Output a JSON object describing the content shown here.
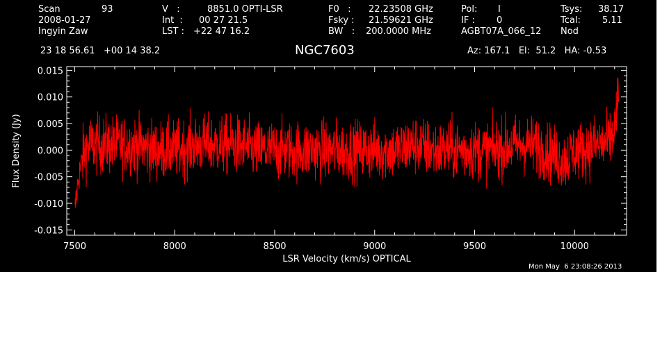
{
  "header": {
    "col1": [
      "Scan",
      "2008-01-27",
      "Ingyin Zaw"
    ],
    "scan_number": "93",
    "col2_labels": [
      "V   :",
      "Int  :",
      "LST :"
    ],
    "col2_values": [
      "8851.0 OPTI-LSR",
      "00 27 21.5",
      "+22 47 16.2"
    ],
    "col3_labels": [
      "F0   :",
      "Fsky :",
      "BW   :"
    ],
    "col3_values": [
      "22.23508 GHz",
      "21.59621 GHz",
      "200.0000 MHz"
    ],
    "col4_labels": [
      "Pol:",
      "IF :",
      "AGBT07A_066_12"
    ],
    "col4_values": [
      "I",
      "0",
      ""
    ],
    "col5_labels": [
      "Tsys:",
      "Tcal:",
      "Nod"
    ],
    "col5_values": [
      "38.17",
      "5.11",
      ""
    ],
    "coords": "23 18 56.61   +00 14 38.2",
    "object": "NGC7603",
    "azelha": "Az: 167.1   El:  51.2   HA: -0.53",
    "timestamp": "Mon May  6 23:08:26 2013"
  },
  "colors": {
    "background": "#000000",
    "trace": "#ff0000",
    "axes": "#ffffff"
  },
  "chart_data": {
    "type": "line",
    "xlabel": "LSR Velocity (km/s) OPTICAL",
    "ylabel": "Flux Density (Jy)",
    "xlim": [
      7460,
      10260
    ],
    "ylim": [
      -0.016,
      0.0157
    ],
    "xticks": [
      7500,
      8000,
      8500,
      9000,
      9500,
      10000
    ],
    "xtick_labels": [
      "7500",
      "8000",
      "8500",
      "9000",
      "9500",
      "10000"
    ],
    "yticks": [
      -0.015,
      -0.01,
      -0.005,
      0.0,
      0.005,
      0.01,
      0.015
    ],
    "ytick_labels": [
      "-0.015",
      "-0.010",
      "-0.005",
      "0.000",
      "0.005",
      "0.010",
      "0.015"
    ],
    "series": [
      {
        "color": "#ff0000",
        "x": [
          7500,
          7510,
          7520,
          7535,
          7550,
          7575,
          7600,
          7700,
          7800,
          7900,
          8000,
          8100,
          8200,
          8300,
          8400,
          8500,
          8600,
          8700,
          8800,
          8900,
          9000,
          9100,
          9200,
          9300,
          9400,
          9500,
          9600,
          9700,
          9800,
          9900,
          9950,
          10000,
          10050,
          10100,
          10150,
          10180,
          10200,
          10210,
          10220
        ],
        "y": [
          -0.012,
          -0.008,
          -0.005,
          -0.002,
          0.0,
          0.001,
          0.001,
          0.001,
          0.001,
          0.0,
          0.0,
          0.001,
          0.001,
          0.001,
          0.0,
          0.0,
          0.0,
          0.0,
          0.0,
          0.0,
          0.0,
          0.0,
          0.001,
          0.0,
          0.0,
          0.0,
          0.0,
          0.001,
          0.001,
          -0.001,
          -0.002,
          0.0,
          0.0,
          0.001,
          0.001,
          0.002,
          0.004,
          0.007,
          0.01
        ],
        "noise_rms": 0.0028
      }
    ]
  }
}
